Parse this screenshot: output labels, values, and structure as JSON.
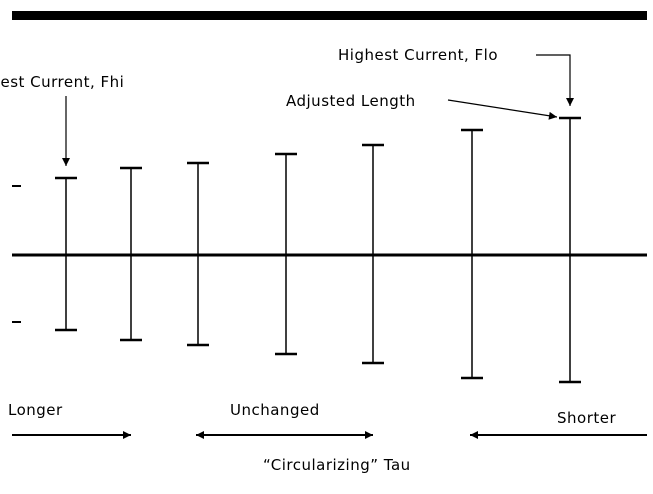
{
  "labels": {
    "flo": "Highest Current, Flo",
    "fhi": "Highest Current, Fhi",
    "adjusted": "Adjusted Length",
    "longer": "Longer",
    "unchanged": "Unchanged",
    "shorter": "Shorter",
    "tau": "“Circularizing” Tau"
  }
}
